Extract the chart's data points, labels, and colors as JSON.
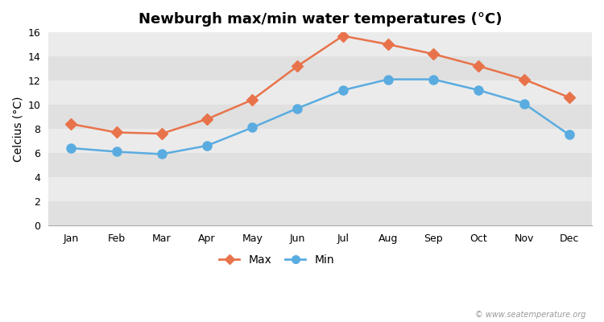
{
  "title": "Newburgh max/min water temperatures (°C)",
  "ylabel": "Celcius (°C)",
  "months": [
    "Jan",
    "Feb",
    "Mar",
    "Apr",
    "May",
    "Jun",
    "Jul",
    "Aug",
    "Sep",
    "Oct",
    "Nov",
    "Dec"
  ],
  "max_values": [
    8.4,
    7.7,
    7.6,
    8.8,
    10.4,
    13.2,
    15.7,
    15.0,
    14.2,
    13.2,
    12.1,
    10.6
  ],
  "min_values": [
    6.4,
    6.1,
    5.9,
    6.6,
    8.1,
    9.7,
    11.2,
    12.1,
    12.1,
    11.2,
    10.1,
    7.5
  ],
  "max_color": "#e8734a",
  "min_color": "#5aace0",
  "ylim": [
    0,
    16
  ],
  "yticks": [
    0,
    2,
    4,
    6,
    8,
    10,
    12,
    14,
    16
  ],
  "fig_bg_color": "#ffffff",
  "band_light": "#ebebeb",
  "band_dark": "#e0e0e0",
  "legend_labels": [
    "Max",
    "Min"
  ],
  "watermark": "© www.seatemperature.org",
  "title_fontsize": 13,
  "axis_label_fontsize": 10,
  "tick_fontsize": 9,
  "legend_fontsize": 10,
  "line_width": 1.8,
  "marker_size_max": 7,
  "marker_size_min": 8
}
